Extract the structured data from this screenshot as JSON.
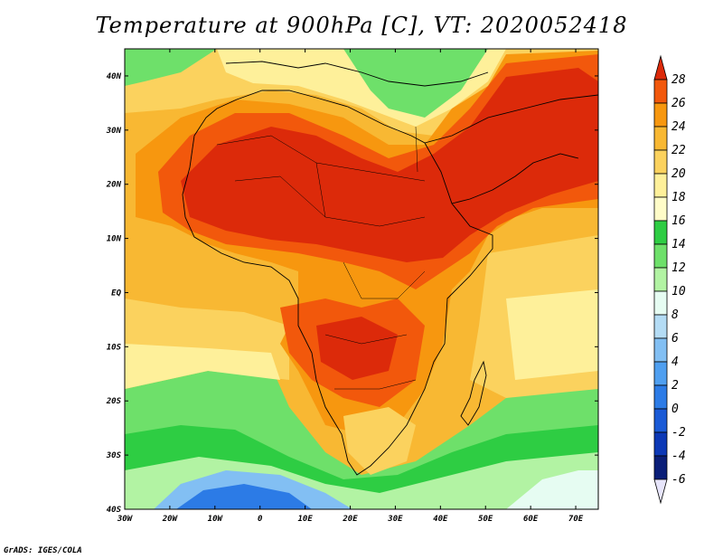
{
  "title": "Temperature at 900hPa [C], VT: 2020052418",
  "credit": "GrADS: IGES/COLA",
  "map": {
    "lon_range": [
      -30,
      75
    ],
    "lat_range": [
      -40,
      45
    ],
    "lon_ticks": [
      {
        "v": -30,
        "label": "30W"
      },
      {
        "v": -20,
        "label": "20W"
      },
      {
        "v": -10,
        "label": "10W"
      },
      {
        "v": 0,
        "label": "0"
      },
      {
        "v": 10,
        "label": "10E"
      },
      {
        "v": 20,
        "label": "20E"
      },
      {
        "v": 30,
        "label": "30E"
      },
      {
        "v": 40,
        "label": "40E"
      },
      {
        "v": 50,
        "label": "50E"
      },
      {
        "v": 60,
        "label": "60E"
      },
      {
        "v": 70,
        "label": "70E"
      }
    ],
    "lat_ticks": [
      {
        "v": 40,
        "label": "40N"
      },
      {
        "v": 30,
        "label": "30N"
      },
      {
        "v": 20,
        "label": "20N"
      },
      {
        "v": 10,
        "label": "10N"
      },
      {
        "v": 0,
        "label": "EQ"
      },
      {
        "v": -10,
        "label": "10S"
      },
      {
        "v": -20,
        "label": "20S"
      },
      {
        "v": -30,
        "label": "30S"
      },
      {
        "v": -40,
        "label": "40S"
      }
    ]
  },
  "colorbar": {
    "labels": [
      "28",
      "26",
      "24",
      "22",
      "20",
      "18",
      "16",
      "14",
      "12",
      "10",
      "8",
      "6",
      "4",
      "2",
      "0",
      "-2",
      "-4",
      "-6"
    ],
    "colors": [
      "#dc2a0a",
      "#f2580c",
      "#f7970f",
      "#f8b833",
      "#fbd25e",
      "#fef09a",
      "#fffcc8",
      "#2ecd43",
      "#6ee06a",
      "#b2f3a3",
      "#e6fcf2",
      "#b4dcf5",
      "#82bff3",
      "#4f9ff0",
      "#2c7be6",
      "#1a5ad6",
      "#0c38b6",
      "#0a1e78",
      "#e7e5fb"
    ]
  }
}
